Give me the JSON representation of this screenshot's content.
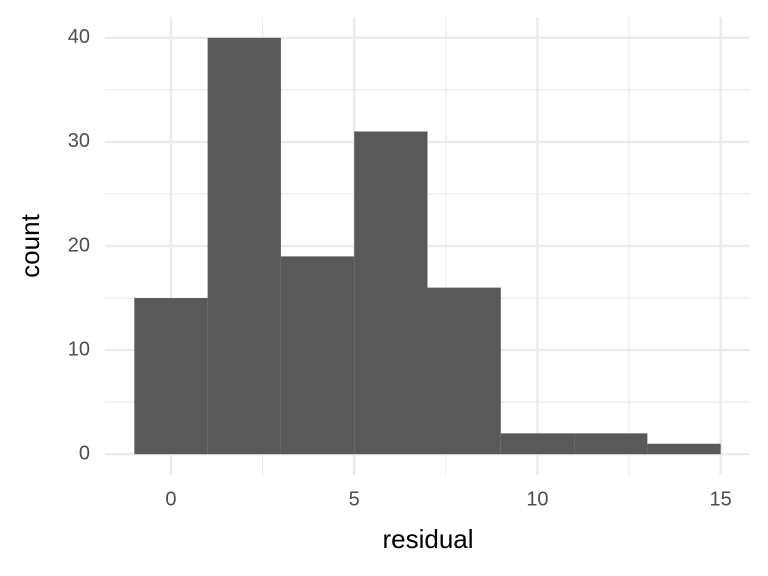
{
  "chart_data": {
    "type": "histogram",
    "x_label": "residual",
    "y_label": "count",
    "bins": [
      -1,
      1,
      3,
      5,
      7,
      9,
      11,
      13,
      15
    ],
    "values": [
      15,
      40,
      19,
      31,
      16,
      2,
      2,
      1
    ],
    "color": "#595959",
    "xlim": [
      -1.8,
      15.8
    ],
    "xticks": [
      0,
      5,
      10,
      15
    ],
    "xminor": [
      2.5,
      7.5,
      12.5
    ],
    "ylim": [
      -2,
      42
    ],
    "yticks": [
      0,
      10,
      20,
      30,
      40
    ],
    "yminor": [
      5,
      15,
      25,
      35
    ],
    "grid": true
  }
}
